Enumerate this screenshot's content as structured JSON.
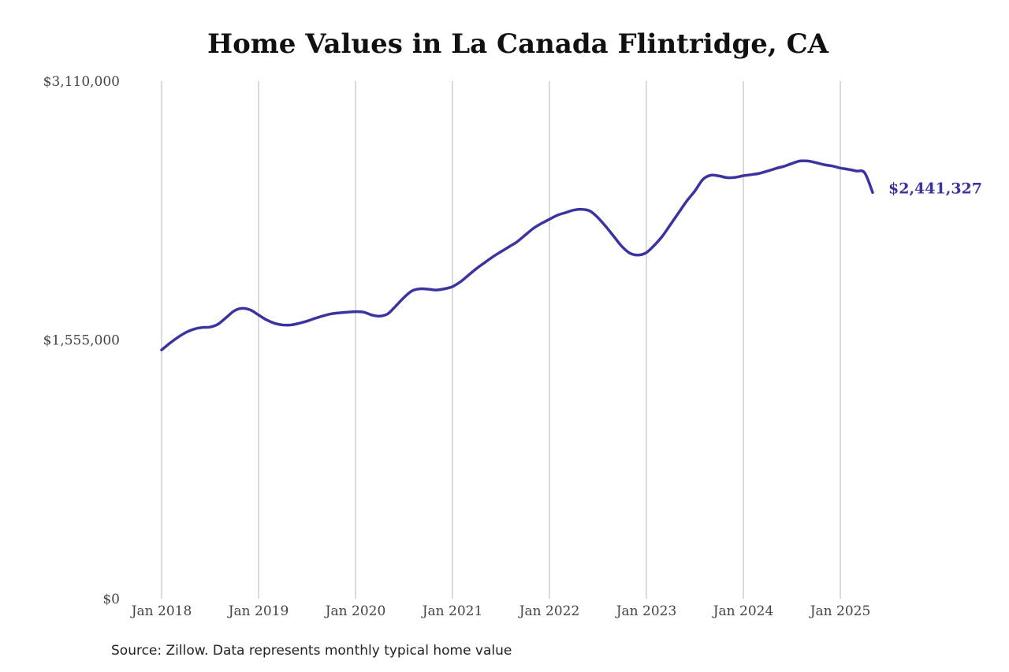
{
  "chart_data": {
    "type": "line",
    "title": "Home Values in La Canada Flintridge, CA",
    "xlabel": "",
    "ylabel": "",
    "ylim": [
      0,
      3110000
    ],
    "yticks": [
      {
        "value": 0,
        "label": "$0"
      },
      {
        "value": 1555000,
        "label": "$1,555,000"
      },
      {
        "value": 3110000,
        "label": "$3,110,000"
      }
    ],
    "xlim": [
      "2018-01",
      "2025-05"
    ],
    "xticks": [
      {
        "date": "2018-01",
        "label": "Jan 2018"
      },
      {
        "date": "2019-01",
        "label": "Jan 2019"
      },
      {
        "date": "2020-01",
        "label": "Jan 2020"
      },
      {
        "date": "2021-01",
        "label": "Jan 2021"
      },
      {
        "date": "2022-01",
        "label": "Jan 2022"
      },
      {
        "date": "2023-01",
        "label": "Jan 2023"
      },
      {
        "date": "2024-01",
        "label": "Jan 2024"
      },
      {
        "date": "2025-01",
        "label": "Jan 2025"
      }
    ],
    "grid": {
      "vertical": true,
      "horizontal": false
    },
    "line_color": "#3b33a0",
    "end_label": "$2,441,327",
    "series": [
      {
        "name": "",
        "x": [
          "2018-01",
          "2018-02",
          "2018-03",
          "2018-04",
          "2018-05",
          "2018-06",
          "2018-07",
          "2018-08",
          "2018-09",
          "2018-10",
          "2018-11",
          "2018-12",
          "2019-01",
          "2019-02",
          "2019-03",
          "2019-04",
          "2019-05",
          "2019-06",
          "2019-07",
          "2019-08",
          "2019-09",
          "2019-10",
          "2019-11",
          "2019-12",
          "2020-01",
          "2020-02",
          "2020-03",
          "2020-04",
          "2020-05",
          "2020-06",
          "2020-07",
          "2020-08",
          "2020-09",
          "2020-10",
          "2020-11",
          "2020-12",
          "2021-01",
          "2021-02",
          "2021-03",
          "2021-04",
          "2021-05",
          "2021-06",
          "2021-07",
          "2021-08",
          "2021-09",
          "2021-10",
          "2021-11",
          "2021-12",
          "2022-01",
          "2022-02",
          "2022-03",
          "2022-04",
          "2022-05",
          "2022-06",
          "2022-07",
          "2022-08",
          "2022-09",
          "2022-10",
          "2022-11",
          "2022-12",
          "2023-01",
          "2023-02",
          "2023-03",
          "2023-04",
          "2023-05",
          "2023-06",
          "2023-07",
          "2023-08",
          "2023-09",
          "2023-10",
          "2023-11",
          "2023-12",
          "2024-01",
          "2024-02",
          "2024-03",
          "2024-04",
          "2024-05",
          "2024-06",
          "2024-07",
          "2024-08",
          "2024-09",
          "2024-10",
          "2024-11",
          "2024-12",
          "2025-01",
          "2025-02",
          "2025-03",
          "2025-04",
          "2025-05"
        ],
        "values": [
          1495000,
          1535000,
          1570000,
          1600000,
          1620000,
          1630000,
          1632000,
          1650000,
          1690000,
          1730000,
          1745000,
          1735000,
          1705000,
          1675000,
          1655000,
          1645000,
          1645000,
          1655000,
          1668000,
          1685000,
          1700000,
          1712000,
          1718000,
          1722000,
          1725000,
          1722000,
          1705000,
          1698000,
          1712000,
          1760000,
          1810000,
          1850000,
          1862000,
          1860000,
          1855000,
          1862000,
          1875000,
          1905000,
          1945000,
          1985000,
          2020000,
          2055000,
          2085000,
          2115000,
          2145000,
          2185000,
          2225000,
          2255000,
          2280000,
          2305000,
          2320000,
          2335000,
          2340000,
          2330000,
          2290000,
          2235000,
          2175000,
          2115000,
          2075000,
          2065000,
          2080000,
          2125000,
          2180000,
          2250000,
          2320000,
          2390000,
          2450000,
          2520000,
          2545000,
          2540000,
          2530000,
          2532000,
          2542000,
          2548000,
          2556000,
          2570000,
          2585000,
          2598000,
          2615000,
          2630000,
          2630000,
          2620000,
          2608000,
          2600000,
          2588000,
          2580000,
          2570000,
          2560000,
          2441327
        ]
      }
    ]
  },
  "source_note": "Source: Zillow. Data represents monthly typical home value"
}
